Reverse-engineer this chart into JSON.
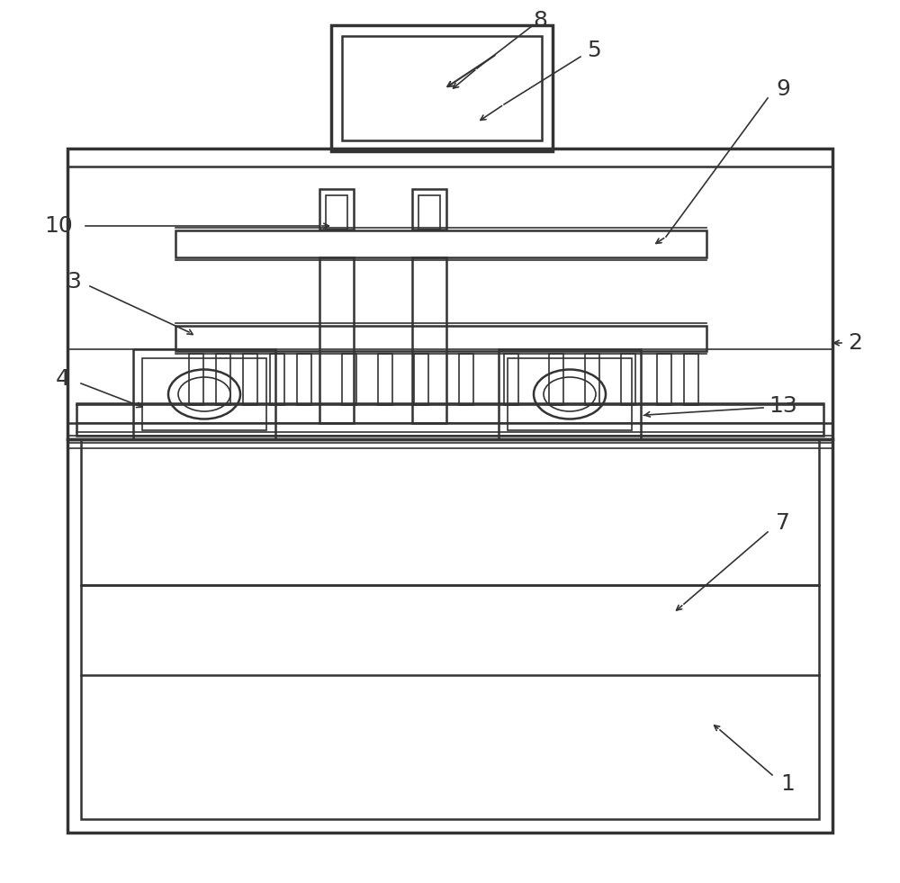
{
  "bg_color": "#ffffff",
  "line_color": "#333333",
  "lw_thin": 1.2,
  "lw_med": 1.8,
  "lw_thick": 2.5,
  "fig_width": 10.0,
  "fig_height": 9.81
}
